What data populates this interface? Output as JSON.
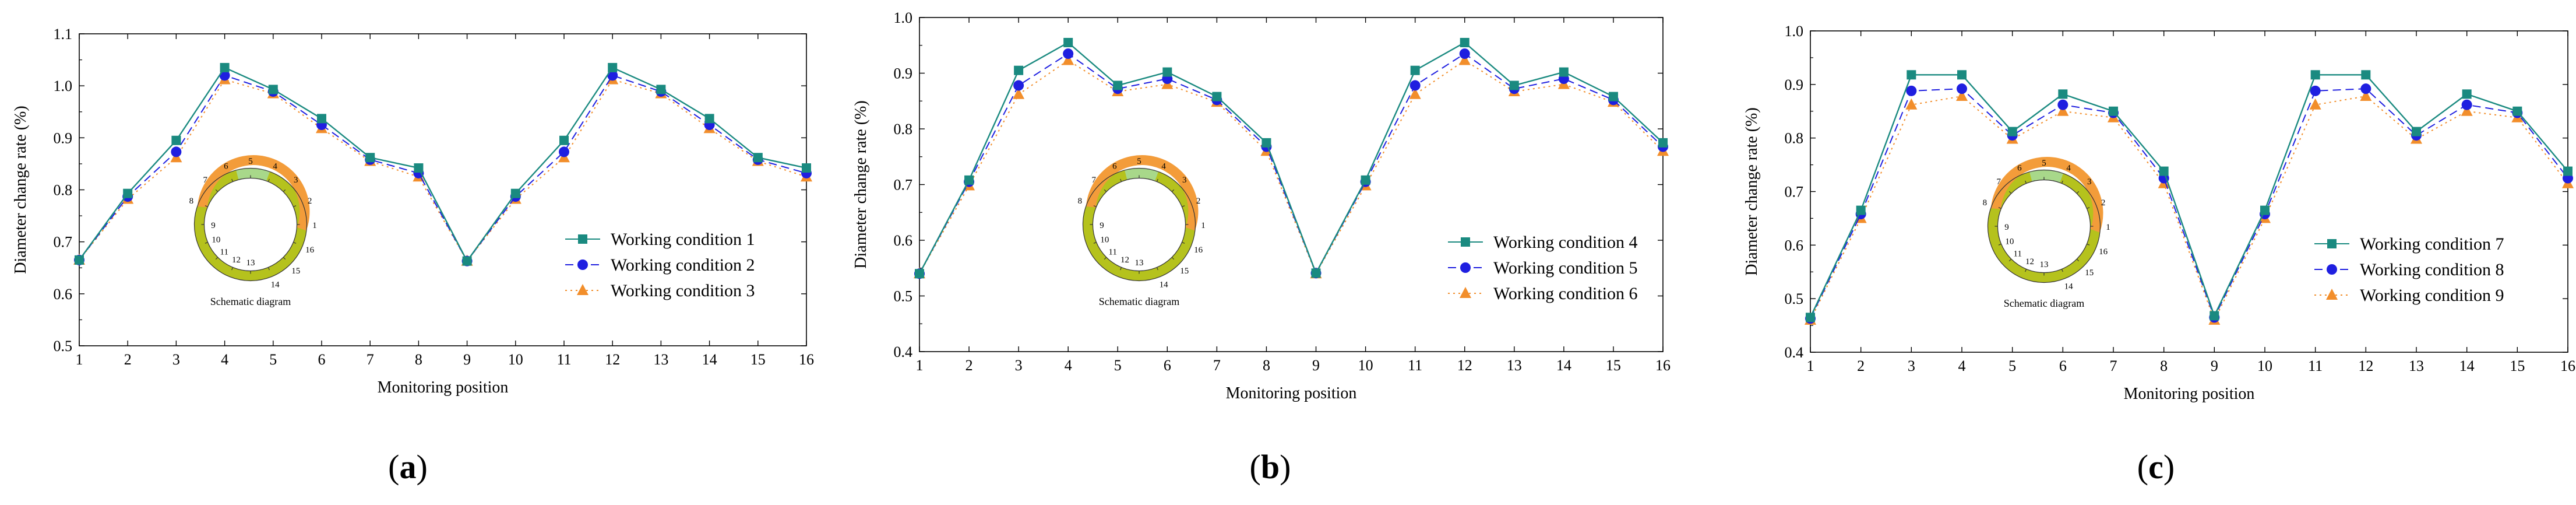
{
  "figure": {
    "colors": {
      "series1": "#1a8a80",
      "series2": "#1f1fe0",
      "series3": "#f28e2b",
      "ring_orange": "#f39c3a",
      "ring_olive": "#b5c21d",
      "ring_green": "#a8d88a"
    },
    "markers": [
      "square",
      "circle",
      "triangle"
    ]
  },
  "chart_data": [
    {
      "type": "line",
      "panel_label": "a",
      "xlabel": "Monitoring position",
      "ylabel": "Diameter change rate (%)",
      "ylim": [
        0.5,
        1.1
      ],
      "yticks": [
        "0.5",
        "0.6",
        "0.7",
        "0.8",
        "0.9",
        "1.0",
        "1.1"
      ],
      "x": [
        1,
        2,
        3,
        4,
        5,
        6,
        7,
        8,
        9,
        10,
        11,
        12,
        13,
        14,
        15,
        16
      ],
      "xticks": [
        "1",
        "2",
        "3",
        "4",
        "5",
        "6",
        "7",
        "8",
        "9",
        "10",
        "11",
        "12",
        "13",
        "14",
        "15",
        "16"
      ],
      "legend_position": "lower-right",
      "series": [
        {
          "name": "Working condition 1",
          "values": [
            0.665,
            0.793,
            0.895,
            1.035,
            0.993,
            0.937,
            0.862,
            0.842,
            0.663,
            0.793,
            0.895,
            1.035,
            0.993,
            0.937,
            0.862,
            0.842
          ]
        },
        {
          "name": "Working condition 2",
          "values": [
            0.665,
            0.787,
            0.873,
            1.02,
            0.989,
            0.925,
            0.858,
            0.832,
            0.663,
            0.787,
            0.873,
            1.02,
            0.989,
            0.925,
            0.858,
            0.832
          ]
        },
        {
          "name": "Working condition 3",
          "values": [
            0.665,
            0.782,
            0.862,
            1.012,
            0.985,
            0.918,
            0.855,
            0.825,
            0.663,
            0.782,
            0.862,
            1.012,
            0.985,
            0.918,
            0.855,
            0.825
          ]
        }
      ],
      "inset": {
        "title": "Schematic diagram",
        "labels": [
          "1",
          "2",
          "3",
          "4",
          "5",
          "6",
          "7",
          "8",
          "9",
          "10",
          "11",
          "12",
          "13",
          "14",
          "15",
          "16"
        ]
      }
    },
    {
      "type": "line",
      "panel_label": "b",
      "xlabel": "Monitoring position",
      "ylabel": "Diameter change rate (%)",
      "ylim": [
        0.4,
        1.0
      ],
      "yticks": [
        "0.4",
        "0.5",
        "0.6",
        "0.7",
        "0.8",
        "0.9",
        "1.0"
      ],
      "x": [
        1,
        2,
        3,
        4,
        5,
        6,
        7,
        8,
        9,
        10,
        11,
        12,
        13,
        14,
        15,
        16
      ],
      "xticks": [
        "1",
        "2",
        "3",
        "4",
        "5",
        "6",
        "7",
        "8",
        "9",
        "10",
        "11",
        "12",
        "13",
        "14",
        "15",
        "16"
      ],
      "legend_position": "lower-right",
      "series": [
        {
          "name": "Working condition 4",
          "values": [
            0.54,
            0.708,
            0.905,
            0.955,
            0.878,
            0.902,
            0.858,
            0.775,
            0.541,
            0.708,
            0.905,
            0.955,
            0.878,
            0.902,
            0.858,
            0.775
          ]
        },
        {
          "name": "Working condition 5",
          "values": [
            0.54,
            0.705,
            0.878,
            0.935,
            0.872,
            0.89,
            0.852,
            0.768,
            0.541,
            0.705,
            0.878,
            0.935,
            0.872,
            0.89,
            0.852,
            0.768
          ]
        },
        {
          "name": "Working condition 6",
          "values": [
            0.54,
            0.698,
            0.862,
            0.923,
            0.867,
            0.88,
            0.848,
            0.76,
            0.54,
            0.698,
            0.862,
            0.923,
            0.867,
            0.88,
            0.848,
            0.76
          ]
        }
      ],
      "inset": {
        "title": "Schematic diagram",
        "labels": [
          "1",
          "2",
          "3",
          "4",
          "5",
          "6",
          "7",
          "8",
          "9",
          "10",
          "11",
          "12",
          "13",
          "14",
          "15",
          "16"
        ]
      }
    },
    {
      "type": "line",
      "panel_label": "c",
      "xlabel": "Monitoring position",
      "ylabel": "Diameter change rate (%)",
      "ylim": [
        0.4,
        1.0
      ],
      "yticks": [
        "0.4",
        "0.5",
        "0.6",
        "0.7",
        "0.8",
        "0.9",
        "1.0"
      ],
      "x": [
        1,
        2,
        3,
        4,
        5,
        6,
        7,
        8,
        9,
        10,
        11,
        12,
        13,
        14,
        15,
        16
      ],
      "xticks": [
        "1",
        "2",
        "3",
        "4",
        "5",
        "6",
        "7",
        "8",
        "9",
        "10",
        "11",
        "12",
        "13",
        "14",
        "15",
        "16"
      ],
      "legend_position": "lower-right",
      "series": [
        {
          "name": "Working condition 7",
          "values": [
            0.465,
            0.665,
            0.918,
            0.918,
            0.812,
            0.882,
            0.85,
            0.738,
            0.468,
            0.665,
            0.918,
            0.918,
            0.812,
            0.882,
            0.85,
            0.738
          ]
        },
        {
          "name": "Working condition 8",
          "values": [
            0.463,
            0.658,
            0.888,
            0.892,
            0.805,
            0.862,
            0.847,
            0.725,
            0.465,
            0.658,
            0.888,
            0.892,
            0.805,
            0.862,
            0.847,
            0.725
          ]
        },
        {
          "name": "Working condition 9",
          "values": [
            0.46,
            0.65,
            0.862,
            0.878,
            0.798,
            0.85,
            0.838,
            0.715,
            0.46,
            0.65,
            0.862,
            0.878,
            0.798,
            0.85,
            0.838,
            0.715
          ]
        }
      ],
      "inset": {
        "title": "Schematic diagram",
        "labels": [
          "1",
          "2",
          "3",
          "4",
          "5",
          "6",
          "7",
          "8",
          "9",
          "10",
          "11",
          "12",
          "13",
          "14",
          "15",
          "16"
        ]
      }
    }
  ]
}
